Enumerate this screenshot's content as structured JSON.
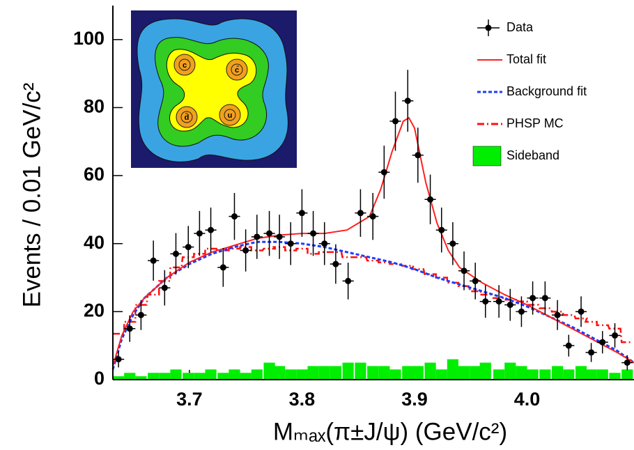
{
  "chart_data": {
    "type": "line",
    "x_label": "Mₘₐₓ(π±J/ψ) (GeV/c²)",
    "y_label": "Events / 0.01 GeV/c²",
    "xlim": [
      3.632,
      4.095
    ],
    "ylim": [
      0,
      110
    ],
    "xticks": [
      3.7,
      3.8,
      3.9,
      {
        "value": 4,
        "label": "4.0"
      }
    ],
    "yticks": [
      0,
      20,
      40,
      60,
      80,
      100
    ],
    "x_error": 0.005,
    "series": [
      {
        "name": "Data",
        "style": "points",
        "color": "#000000",
        "x": [
          3.637,
          3.647,
          3.657,
          3.668,
          3.678,
          3.688,
          3.699,
          3.709,
          3.719,
          3.73,
          3.74,
          3.75,
          3.76,
          3.771,
          3.78,
          3.79,
          3.8,
          3.81,
          3.82,
          3.83,
          3.841,
          3.852,
          3.863,
          3.873,
          3.883,
          3.894,
          3.903,
          3.914,
          3.924,
          3.934,
          3.944,
          3.954,
          3.963,
          3.975,
          3.985,
          3.995,
          4.005,
          4.016,
          4.027,
          4.037,
          4.048,
          4.057,
          4.067,
          4.078,
          4.089
        ],
        "values": [
          6,
          15,
          19,
          35,
          27,
          37,
          39,
          43,
          44,
          33,
          48,
          38,
          42,
          43,
          42,
          40,
          49,
          43,
          40,
          34,
          29,
          49,
          48,
          61,
          76,
          82,
          66,
          53,
          44,
          40,
          32,
          29,
          23,
          23,
          22,
          20,
          24,
          24,
          19,
          10,
          20,
          8,
          11,
          13,
          5
        ],
        "errors": [
          2.4,
          3.9,
          4.4,
          5.9,
          5.2,
          6.1,
          6.2,
          6.6,
          6.6,
          5.7,
          6.9,
          6.2,
          6.5,
          6.6,
          6.5,
          6.3,
          7,
          6.6,
          6.3,
          5.8,
          5.4,
          7,
          6.9,
          7.8,
          8.7,
          9.1,
          8.1,
          7.3,
          6.6,
          6.3,
          5.7,
          5.4,
          4.8,
          4.8,
          4.7,
          4.5,
          4.9,
          4.9,
          4.4,
          3.2,
          4.5,
          2.8,
          3.3,
          3.6,
          2.2
        ]
      },
      {
        "name": "Total fit",
        "style": "line",
        "color": "#ff2020",
        "x": [
          3.632,
          3.64,
          3.65,
          3.66,
          3.68,
          3.7,
          3.72,
          3.74,
          3.76,
          3.78,
          3.8,
          3.82,
          3.84,
          3.86,
          3.87,
          3.88,
          3.89,
          3.895,
          3.9,
          3.91,
          3.92,
          3.93,
          3.94,
          3.96,
          3.98,
          4.0,
          4.02,
          4.04,
          4.06,
          4.08,
          4.095
        ],
        "values": [
          4,
          13,
          20,
          24,
          30,
          34.5,
          37.5,
          39.5,
          41.5,
          42.5,
          43,
          43,
          44,
          48,
          56,
          67,
          76,
          77,
          74,
          58,
          46,
          38,
          33,
          28.5,
          25,
          22,
          18.5,
          15,
          11.5,
          8,
          5
        ]
      },
      {
        "name": "Background fit",
        "style": "dashed",
        "color": "#1a3cff",
        "x": [
          3.632,
          3.64,
          3.65,
          3.66,
          3.68,
          3.7,
          3.72,
          3.74,
          3.76,
          3.78,
          3.8,
          3.82,
          3.84,
          3.86,
          3.88,
          3.9,
          3.92,
          3.94,
          3.96,
          3.98,
          4.0,
          4.02,
          4.04,
          4.06,
          4.08,
          4.095
        ],
        "values": [
          3,
          12,
          19,
          24,
          30,
          34,
          37,
          39,
          40.5,
          40.5,
          40,
          39,
          37.5,
          36,
          34.5,
          32.5,
          30,
          28,
          26,
          24,
          21.5,
          18.5,
          15.5,
          12,
          8.5,
          5
        ]
      },
      {
        "name": "PHSP MC",
        "style": "dashdot-step",
        "color": "#ff1010",
        "x": [
          3.637,
          3.647,
          3.657,
          3.668,
          3.678,
          3.688,
          3.699,
          3.709,
          3.719,
          3.73,
          3.74,
          3.75,
          3.76,
          3.771,
          3.78,
          3.79,
          3.8,
          3.81,
          3.82,
          3.83,
          3.841,
          3.852,
          3.863,
          3.873,
          3.883,
          3.894,
          3.903,
          3.914,
          3.924,
          3.934,
          3.944,
          3.954,
          3.963,
          3.975,
          3.985,
          3.995,
          4.005,
          4.016,
          4.027,
          4.037,
          4.048,
          4.057,
          4.067,
          4.078,
          4.089
        ],
        "values": [
          13.5,
          17,
          22,
          25,
          29,
          33,
          36,
          37,
          38.5,
          38,
          38.5,
          39,
          38,
          38.5,
          39,
          38,
          38.5,
          37,
          37.5,
          37.5,
          36,
          36,
          35,
          34.5,
          34,
          33.5,
          32.5,
          31,
          30,
          28.5,
          27.5,
          26,
          25,
          24,
          23.5,
          23,
          22,
          21,
          20,
          19,
          18,
          17,
          16,
          15,
          11
        ]
      },
      {
        "name": "Sideband",
        "style": "histogram",
        "color": "#00ee00",
        "x": [
          3.637,
          3.647,
          3.657,
          3.668,
          3.678,
          3.688,
          3.699,
          3.709,
          3.719,
          3.73,
          3.74,
          3.75,
          3.76,
          3.771,
          3.78,
          3.79,
          3.8,
          3.81,
          3.82,
          3.83,
          3.841,
          3.852,
          3.863,
          3.873,
          3.883,
          3.894,
          3.903,
          3.914,
          3.924,
          3.934,
          3.944,
          3.954,
          3.963,
          3.975,
          3.985,
          3.995,
          4.005,
          4.016,
          4.027,
          4.037,
          4.048,
          4.057,
          4.067,
          4.078,
          4.089
        ],
        "values": [
          1,
          2,
          1,
          2,
          2,
          3,
          2,
          2,
          3,
          2,
          3,
          2,
          3,
          5,
          4,
          3,
          3,
          4,
          4,
          4,
          5,
          5,
          4,
          4,
          3,
          4,
          4,
          5,
          3,
          6,
          4,
          4,
          5,
          3,
          5,
          4,
          3,
          3,
          4,
          3,
          4,
          3,
          3,
          2,
          3
        ]
      }
    ],
    "inset": {
      "labels": [
        "c",
        "c̄",
        "d̄",
        "u"
      ]
    }
  }
}
